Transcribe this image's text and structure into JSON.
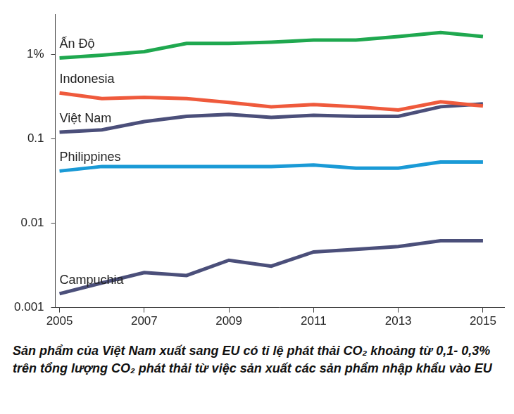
{
  "chart_data": {
    "type": "line",
    "caption": "Sản phẩm của Việt Nam xuất sang EU có tỉ lệ phát thải CO₂ khoảng từ 0,1- 0,3% trên tổng lượng CO₂ phát thải từ việc sản xuất các sản phẩm nhập khẩu vào EU",
    "x": [
      2005,
      2006,
      2007,
      2008,
      2009,
      2010,
      2011,
      2012,
      2013,
      2014,
      2015
    ],
    "xlim": [
      2004.9,
      2015.5
    ],
    "xticks": [
      2005,
      2007,
      2009,
      2011,
      2013,
      2015
    ],
    "ylim": [
      0.001,
      3
    ],
    "yticks": [
      0.001,
      0.01,
      0.1,
      {
        "value": 1,
        "label": "1%"
      }
    ],
    "log": "y",
    "grid": false,
    "series": [
      {
        "name": "Ấn Độ",
        "color": "#1fa84f",
        "values": [
          0.91,
          0.98,
          1.08,
          1.35,
          1.35,
          1.4,
          1.48,
          1.48,
          1.63,
          1.82,
          1.63
        ]
      },
      {
        "name": "Indonesia",
        "color": "#ef5a3c",
        "values": [
          0.35,
          0.3,
          0.31,
          0.3,
          0.27,
          0.24,
          0.255,
          0.24,
          0.22,
          0.275,
          0.245
        ]
      },
      {
        "name": "Việt Nam",
        "color": "#4b4f7a",
        "values": [
          0.12,
          0.128,
          0.16,
          0.185,
          0.195,
          0.18,
          0.19,
          0.185,
          0.185,
          0.24,
          0.26
        ]
      },
      {
        "name": "Philippines",
        "color": "#1a9ad6",
        "values": [
          0.0415,
          0.047,
          0.047,
          0.047,
          0.047,
          0.047,
          0.049,
          0.045,
          0.045,
          0.053,
          0.053
        ]
      },
      {
        "name": "Campuchia",
        "color": "#4b4f7a",
        "values": [
          0.00146,
          0.00196,
          0.0026,
          0.0024,
          0.00364,
          0.0031,
          0.00456,
          0.0049,
          0.0053,
          0.0062,
          0.0062
        ]
      }
    ]
  }
}
